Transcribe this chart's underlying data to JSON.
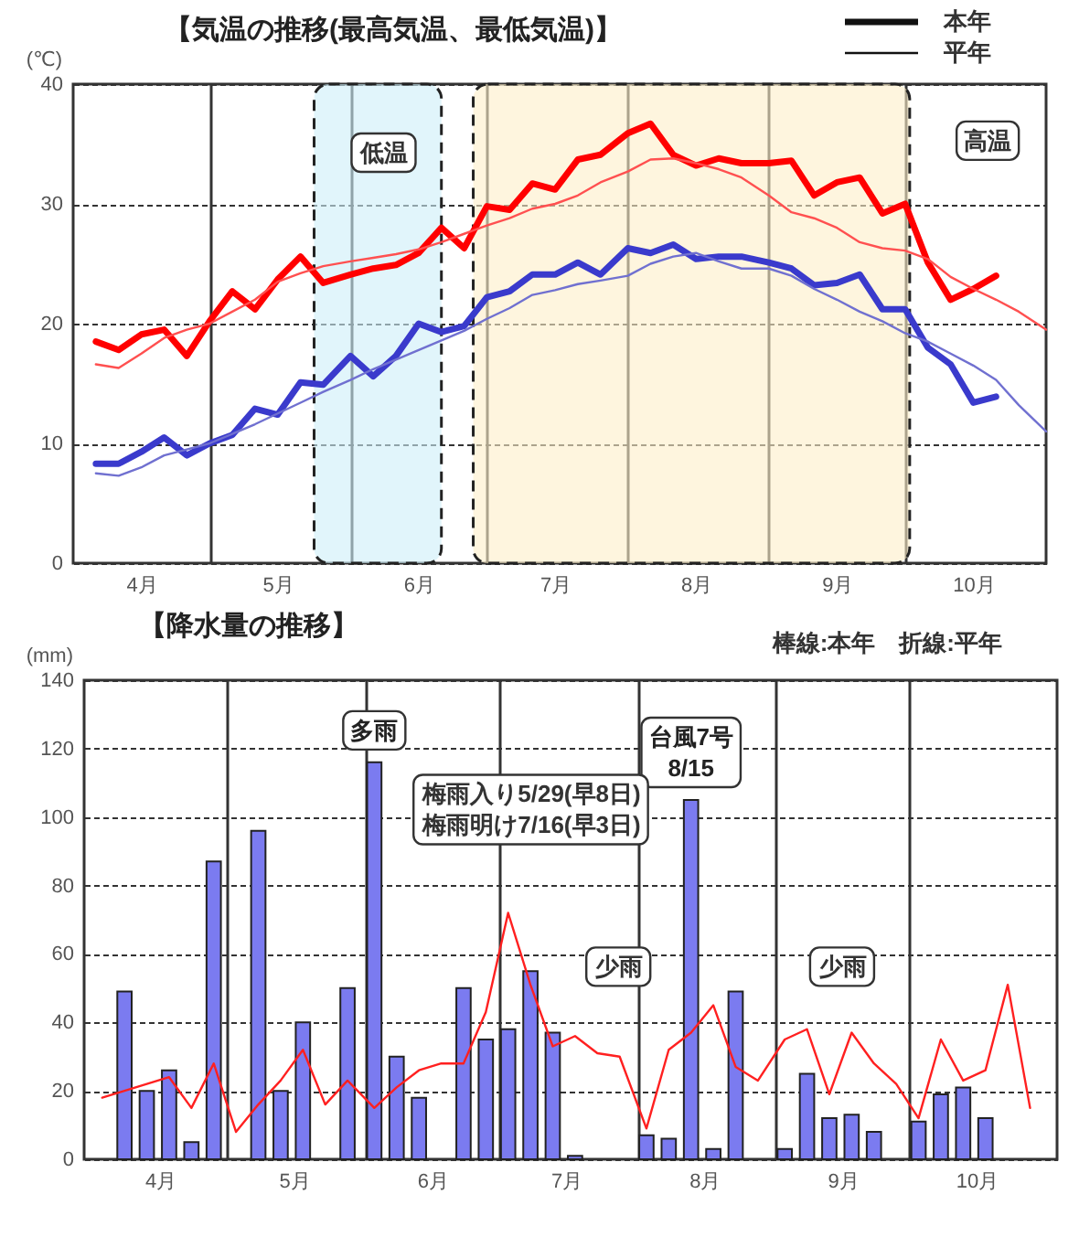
{
  "chart_data": [
    {
      "type": "line",
      "title": "【気温の推移(最高気温、最低気温)】",
      "ylabel": "(℃)",
      "x": [
        "--04-06",
        "--04-11",
        "--04-16",
        "--04-21",
        "--04-26",
        "--05-01",
        "--05-06",
        "--05-11",
        "--05-16",
        "--05-21",
        "--05-26",
        "--06-01",
        "--06-06",
        "--06-11",
        "--06-16",
        "--06-21",
        "--06-26",
        "--07-01",
        "--07-06",
        "--07-11",
        "--07-16",
        "--07-21",
        "--07-26",
        "--08-01",
        "--08-06",
        "--08-11",
        "--08-16",
        "--08-21",
        "--08-26",
        "--09-01",
        "--09-06",
        "--09-11",
        "--09-16",
        "--09-21",
        "--09-26",
        "--10-01",
        "--10-06",
        "--10-11",
        "--10-16",
        "--10-21",
        "--10-26",
        "--11-01"
      ],
      "series": [
        {
          "color": "#ff0000",
          "values": [
            18.5,
            17.8,
            19.1,
            19.5,
            17.3,
            20.2,
            22.7,
            21.2,
            23.7,
            25.6,
            23.4,
            24.1,
            24.6,
            24.9,
            25.9,
            28.0,
            26.3,
            29.8,
            29.5,
            31.7,
            31.2,
            33.7,
            34.1,
            35.9,
            36.7,
            34.1,
            33.2,
            33.8,
            33.4,
            33.4,
            33.6,
            30.7,
            31.8,
            32.2,
            29.2,
            30.0,
            25.1,
            22.0,
            22.9,
            24.0,
            null,
            null
          ]
        },
        {
          "color": "#ff5050",
          "values": [
            16.6,
            16.3,
            17.5,
            18.8,
            19.5,
            20.0,
            21.0,
            22.0,
            23.5,
            24.2,
            24.8,
            25.2,
            25.5,
            25.8,
            26.2,
            26.8,
            27.5,
            28.2,
            28.8,
            29.6,
            30.0,
            30.7,
            31.8,
            32.7,
            33.7,
            33.8,
            33.4,
            32.9,
            32.2,
            30.7,
            29.3,
            28.8,
            28.0,
            26.8,
            26.3,
            26.1,
            25.4,
            23.9,
            22.9,
            22.0,
            21.0,
            19.5
          ]
        },
        {
          "color": "#3a3acc",
          "values": [
            8.3,
            8.3,
            9.3,
            10.5,
            9.0,
            10.0,
            10.7,
            12.9,
            12.4,
            15.1,
            14.9,
            17.3,
            15.6,
            17.3,
            20.0,
            19.3,
            19.8,
            22.2,
            22.7,
            24.1,
            24.1,
            25.1,
            24.1,
            26.3,
            25.9,
            26.6,
            25.4,
            25.6,
            25.6,
            25.1,
            24.6,
            23.2,
            23.4,
            24.1,
            21.2,
            21.2,
            18.0,
            16.6,
            13.4,
            13.9,
            null,
            null
          ]
        },
        {
          "color": "#7070d0",
          "values": [
            7.5,
            7.3,
            8.0,
            9.0,
            9.5,
            10.0,
            10.8,
            11.6,
            12.5,
            13.4,
            14.3,
            15.3,
            16.2,
            17.0,
            17.8,
            18.6,
            19.4,
            20.4,
            21.3,
            22.4,
            22.8,
            23.3,
            23.6,
            24.0,
            25.0,
            25.6,
            25.9,
            25.2,
            24.6,
            24.6,
            24.0,
            22.9,
            22.0,
            21.0,
            20.2,
            19.2,
            18.5,
            17.5,
            16.5,
            15.3,
            13.2,
            11.0
          ]
        }
      ],
      "xlim": [
        "--04-01",
        "--11-01"
      ],
      "xticks": [
        {
          "value": "--04-16",
          "label": "4月"
        },
        {
          "value": "--05-01",
          "label": null
        },
        {
          "value": "--05-16",
          "label": "5月"
        },
        {
          "value": "--06-01",
          "label": null
        },
        {
          "value": "--06-16",
          "label": "6月"
        },
        {
          "value": "--07-01",
          "label": null
        },
        {
          "value": "--07-16",
          "label": "7月"
        },
        {
          "value": "--08-01",
          "label": null
        },
        {
          "value": "--08-16",
          "label": "8月"
        },
        {
          "value": "--09-01",
          "label": null
        },
        {
          "value": "--09-16",
          "label": "9月"
        },
        {
          "value": "--10-01",
          "label": null
        },
        {
          "value": "--10-16",
          "label": "10月"
        }
      ],
      "ylim": [
        0,
        40
      ],
      "yticks": [
        0,
        10,
        20,
        30,
        40
      ],
      "grid": true,
      "bands": [
        {
          "axis": "x",
          "from": "--05-24",
          "to": "--06-21",
          "color": "#cdeef8"
        },
        {
          "axis": "x",
          "from": "--06-28",
          "to": "--10-02",
          "color": "#fdeec8"
        }
      ],
      "annotations": [
        "低温",
        "高温",
        "本年",
        "平年"
      ]
    },
    {
      "type": "bar",
      "title": "【降水量の推移】",
      "ylabel": "(mm)",
      "x": [
        "--04-03",
        "--04-08",
        "--04-13",
        "--04-18",
        "--04-23",
        "--04-28",
        "--05-03",
        "--05-08",
        "--05-13",
        "--05-18",
        "--05-23",
        "--05-28",
        "--06-03",
        "--06-08",
        "--06-13",
        "--06-18",
        "--06-23",
        "--06-28",
        "--07-03",
        "--07-08",
        "--07-13",
        "--07-18",
        "--07-23",
        "--07-28",
        "--08-03",
        "--08-08",
        "--08-13",
        "--08-18",
        "--08-23",
        "--08-28",
        "--09-03",
        "--09-08",
        "--09-13",
        "--09-18",
        "--09-23",
        "--09-28",
        "--10-03",
        "--10-08",
        "--10-13",
        "--10-18",
        "--10-23",
        "--10-28"
      ],
      "series": [
        {
          "type": "bar",
          "color": "#7b7bf0",
          "values": [
            0,
            49,
            20,
            26,
            5,
            87,
            0,
            96,
            20,
            40,
            0,
            50,
            116,
            30,
            18,
            0,
            50,
            35,
            38,
            55,
            37,
            1,
            0,
            0,
            7,
            6,
            105,
            3,
            49,
            0,
            3,
            25,
            12,
            13,
            8,
            0,
            11,
            19,
            21,
            12,
            null,
            null
          ]
        },
        {
          "type": "line",
          "color": "#ff2020",
          "values": [
            18,
            20,
            22,
            24,
            15,
            28,
            8,
            16,
            23,
            32,
            16,
            23,
            15,
            21,
            26,
            28,
            28,
            43,
            72,
            51,
            33,
            36,
            31,
            30,
            9,
            32,
            37,
            45,
            27,
            23,
            35,
            38,
            19,
            37,
            28,
            22,
            12,
            35,
            23,
            26,
            51,
            15
          ]
        }
      ],
      "xlim": [
        "--04-01",
        "--11-01"
      ],
      "xticks": [
        {
          "value": "--04-16",
          "label": "4月"
        },
        {
          "value": "--05-01",
          "label": null
        },
        {
          "value": "--05-16",
          "label": "5月"
        },
        {
          "value": "--06-01",
          "label": null
        },
        {
          "value": "--06-16",
          "label": "6月"
        },
        {
          "value": "--07-01",
          "label": null
        },
        {
          "value": "--07-16",
          "label": "7月"
        },
        {
          "value": "--08-01",
          "label": null
        },
        {
          "value": "--08-16",
          "label": "8月"
        },
        {
          "value": "--09-01",
          "label": null
        },
        {
          "value": "--09-16",
          "label": "9月"
        },
        {
          "value": "--10-01",
          "label": null
        },
        {
          "value": "--10-16",
          "label": "10月"
        }
      ],
      "ylim": [
        0,
        140
      ],
      "yticks": [
        0,
        20,
        40,
        60,
        80,
        100,
        120,
        140
      ],
      "grid": true,
      "annotations": [
        {
          "text": "多雨",
          "x": "--06-03",
          "y": 116
        },
        {
          "text": "台風7号\n8/15",
          "x": "--08-13",
          "y": 105
        },
        "少雨",
        "少雨",
        "梅雨入り5/29(早8日)\n梅雨明け7/16(早3日)",
        "棒線:本年　折線:平年"
      ]
    }
  ]
}
